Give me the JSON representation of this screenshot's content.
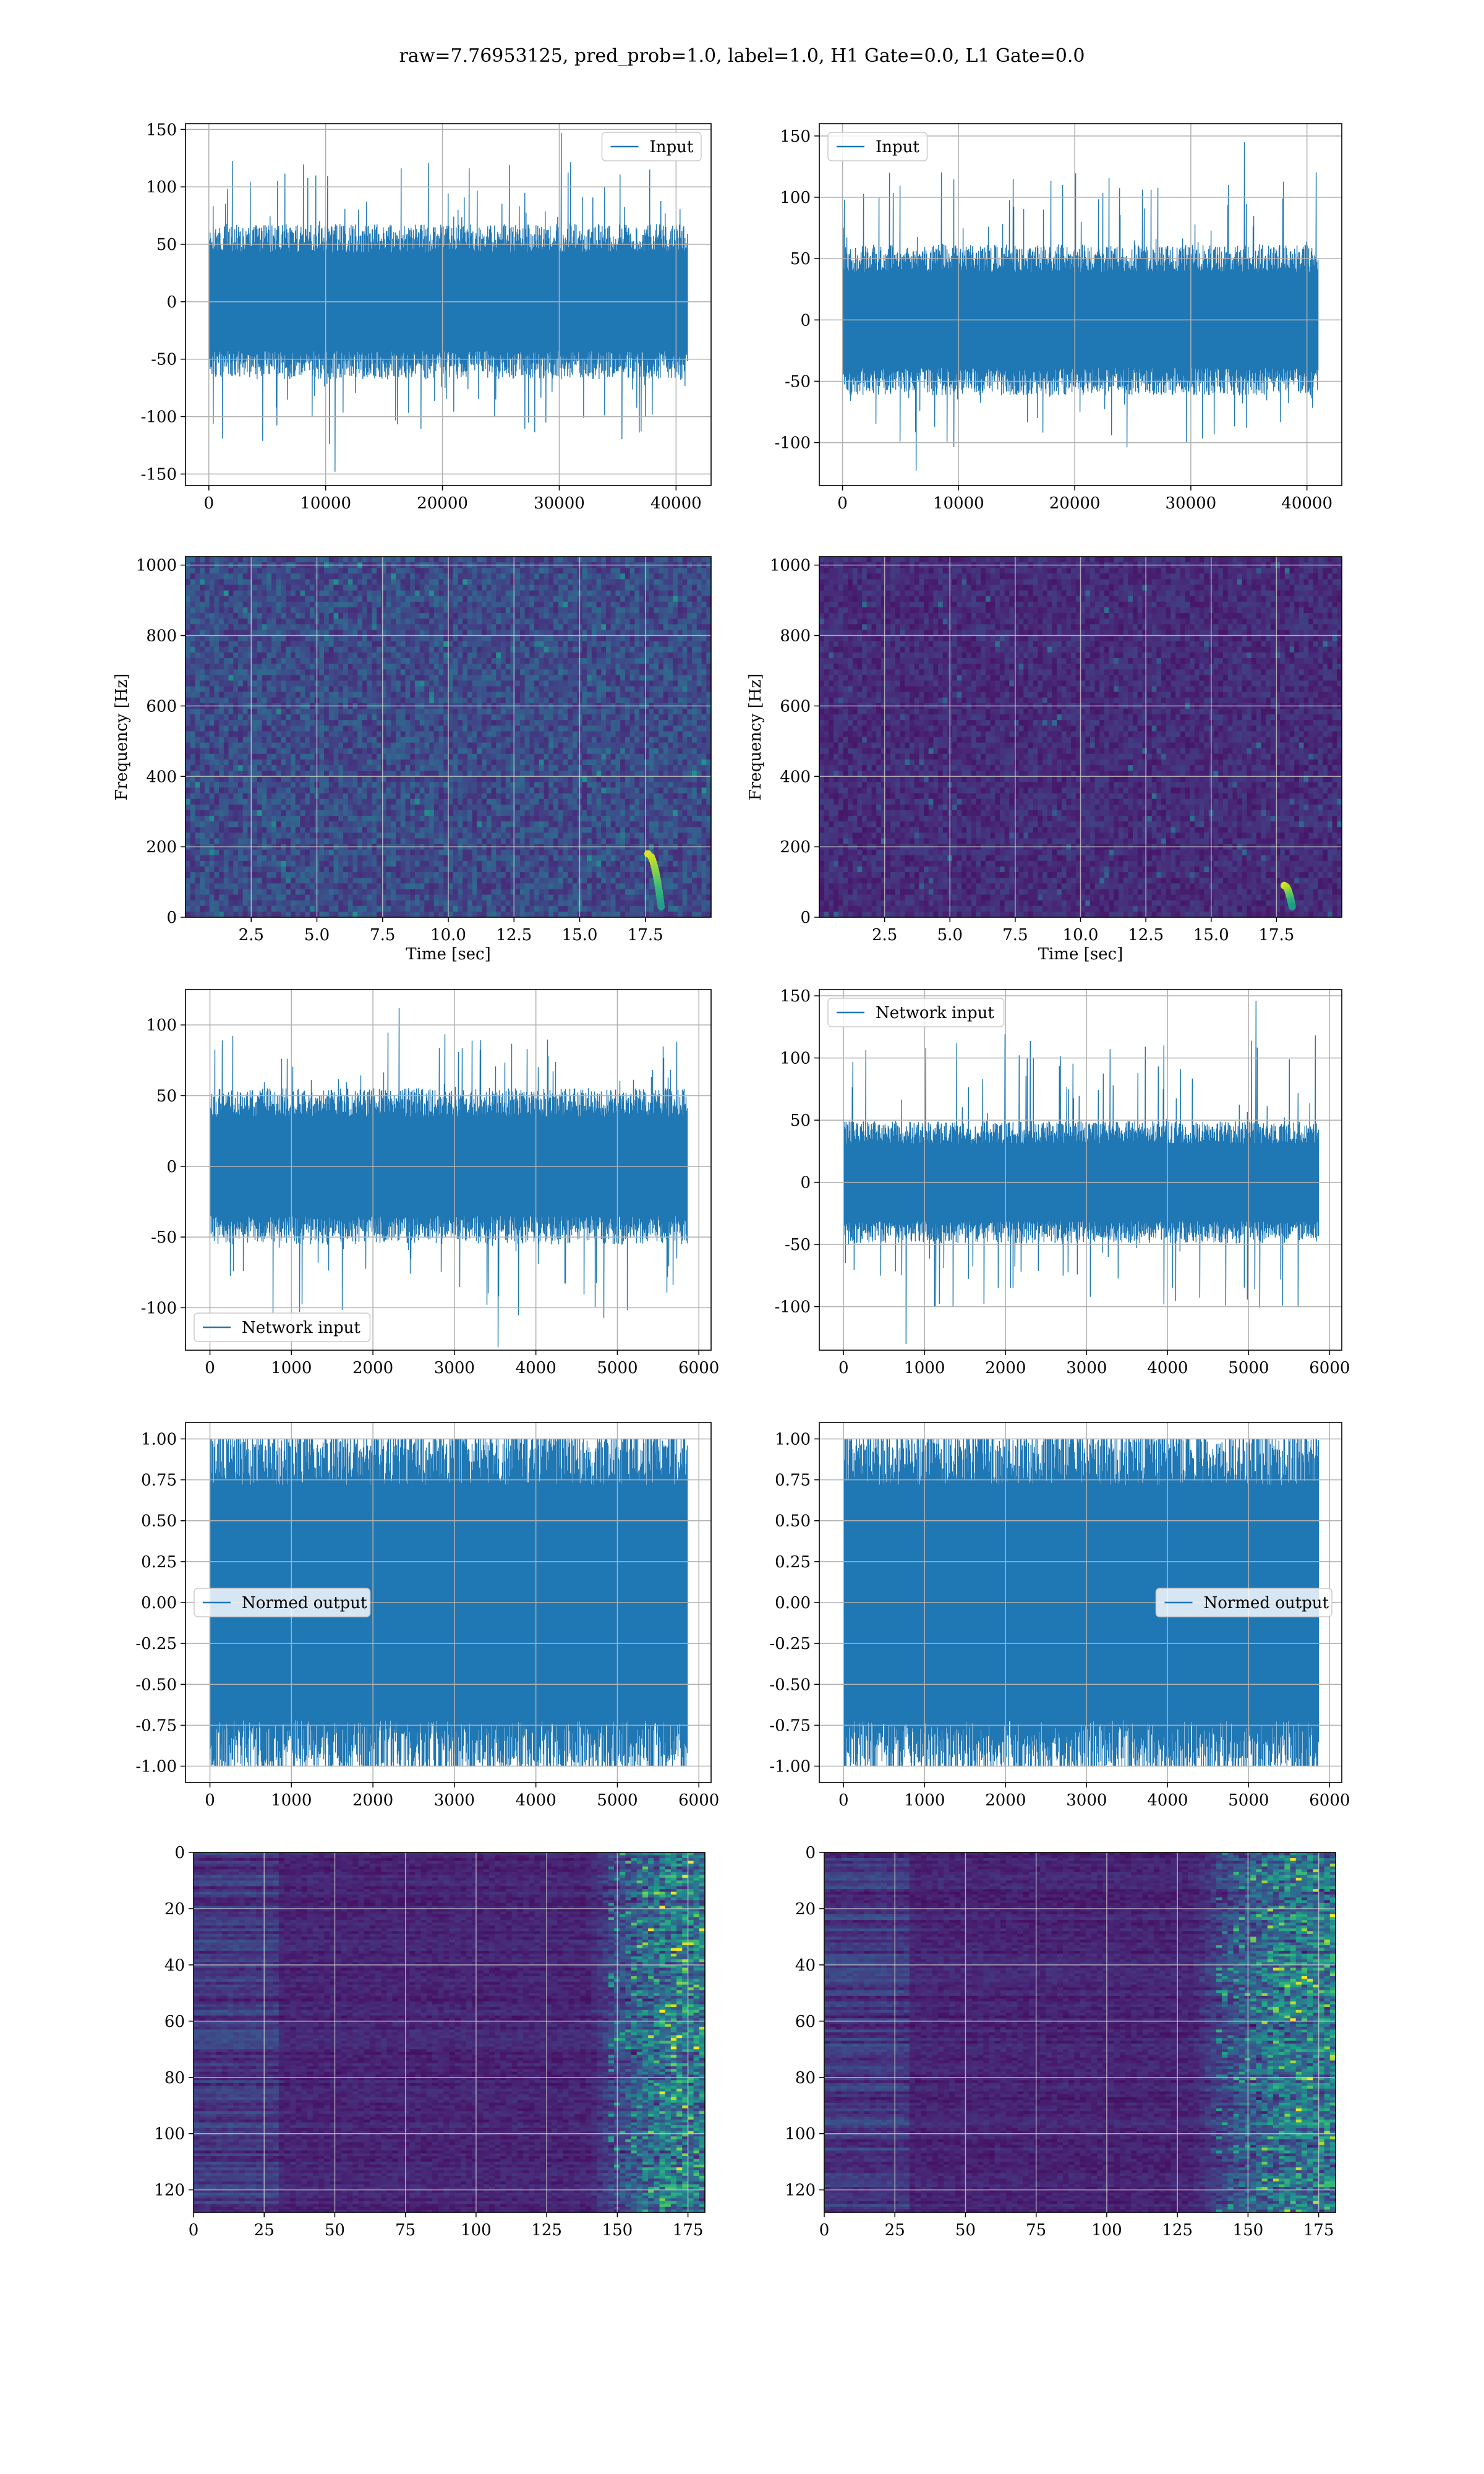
{
  "figure": {
    "title": "raw=7.76953125, pred_prob=1.0, label=1.0, H1 Gate=0.0, L1 Gate=0.0",
    "series_color": "#1f77b4"
  },
  "chart_data": [
    {
      "panel": "row1-left",
      "type": "line",
      "description": "Input time series, detector 1",
      "series": [
        {
          "name": "Input",
          "color": "#1f77b4"
        }
      ],
      "legend": "upper right",
      "x_range": [
        0,
        40960
      ],
      "xlim": [
        -2000,
        43000
      ],
      "ylim": [
        -160,
        155
      ],
      "xticks": [
        0,
        10000,
        20000,
        30000,
        40000
      ],
      "yticks": [
        -150,
        -100,
        -50,
        0,
        50,
        100,
        150
      ],
      "band_envelope": {
        "typical_abs": 55,
        "spike_max": 147,
        "spike_min": -148
      },
      "grid": true
    },
    {
      "panel": "row1-right",
      "type": "line",
      "description": "Input time series, detector 2",
      "series": [
        {
          "name": "Input",
          "color": "#1f77b4"
        }
      ],
      "legend": "upper left",
      "x_range": [
        0,
        40960
      ],
      "xlim": [
        -2000,
        43000
      ],
      "ylim": [
        -135,
        160
      ],
      "xticks": [
        0,
        10000,
        20000,
        30000,
        40000
      ],
      "yticks": [
        -100,
        -50,
        0,
        50,
        100,
        150
      ],
      "band_envelope": {
        "typical_abs": 50,
        "spike_max": 145,
        "spike_min": -123
      },
      "grid": true
    },
    {
      "panel": "row2-left",
      "type": "heatmap",
      "description": "Spectrogram, detector 1",
      "xlabel": "Time [sec]",
      "ylabel": "Frequency [Hz]",
      "xlim": [
        0,
        20
      ],
      "ylim": [
        0,
        1024
      ],
      "xticks": [
        2.5,
        5.0,
        7.5,
        10.0,
        12.5,
        15.0,
        17.5
      ],
      "yticks": [
        0,
        200,
        400,
        600,
        800,
        1000
      ],
      "colormap": "viridis",
      "chirp": {
        "t_start": 17.6,
        "t_end": 18.1,
        "f_low": 30,
        "f_high": 180
      },
      "grid": true
    },
    {
      "panel": "row2-right",
      "type": "heatmap",
      "description": "Spectrogram, detector 2",
      "xlabel": "Time [sec]",
      "ylabel": "Frequency [Hz]",
      "xlim": [
        0,
        20
      ],
      "ylim": [
        0,
        1024
      ],
      "xticks": [
        2.5,
        5.0,
        7.5,
        10.0,
        12.5,
        15.0,
        17.5
      ],
      "yticks": [
        0,
        200,
        400,
        600,
        800,
        1000
      ],
      "colormap": "viridis",
      "chirp": {
        "t_start": 17.8,
        "t_end": 18.1,
        "f_low": 30,
        "f_high": 90
      },
      "grid": true
    },
    {
      "panel": "row3-left",
      "type": "line",
      "description": "Network input, detector 1",
      "series": [
        {
          "name": "Network input",
          "color": "#1f77b4"
        }
      ],
      "legend": "lower left",
      "x_range": [
        0,
        5860
      ],
      "xlim": [
        -300,
        6150
      ],
      "ylim": [
        -130,
        125
      ],
      "xticks": [
        0,
        1000,
        2000,
        3000,
        4000,
        5000,
        6000
      ],
      "yticks": [
        -100,
        -50,
        0,
        50,
        100
      ],
      "band_envelope": {
        "typical_abs": 45,
        "spike_max": 112,
        "spike_min": -128
      },
      "grid": true
    },
    {
      "panel": "row3-right",
      "type": "line",
      "description": "Network input, detector 2",
      "series": [
        {
          "name": "Network input",
          "color": "#1f77b4"
        }
      ],
      "legend": "upper left",
      "x_range": [
        0,
        5860
      ],
      "xlim": [
        -300,
        6150
      ],
      "ylim": [
        -135,
        155
      ],
      "xticks": [
        0,
        1000,
        2000,
        3000,
        4000,
        5000,
        6000
      ],
      "yticks": [
        -100,
        -50,
        0,
        50,
        100,
        150
      ],
      "band_envelope": {
        "typical_abs": 40,
        "spike_max": 146,
        "spike_min": -130
      },
      "grid": true
    },
    {
      "panel": "row4-left",
      "type": "line",
      "description": "Normed output, detector 1",
      "series": [
        {
          "name": "Normed output",
          "color": "#1f77b4"
        }
      ],
      "legend": "center left",
      "x_range": [
        0,
        5860
      ],
      "xlim": [
        -300,
        6150
      ],
      "ylim": [
        -1.1,
        1.1
      ],
      "xticks": [
        0,
        1000,
        2000,
        3000,
        4000,
        5000,
        6000
      ],
      "yticks": [
        -1.0,
        -0.75,
        -0.5,
        -0.25,
        0.0,
        0.25,
        0.5,
        0.75,
        1.0
      ],
      "band_envelope": {
        "typical_abs": 0.92,
        "spike_max": 1.0,
        "spike_min": -1.0
      },
      "grid": true
    },
    {
      "panel": "row4-right",
      "type": "line",
      "description": "Normed output, detector 2",
      "series": [
        {
          "name": "Normed output",
          "color": "#1f77b4"
        }
      ],
      "legend": "center right",
      "x_range": [
        0,
        5860
      ],
      "xlim": [
        -300,
        6150
      ],
      "ylim": [
        -1.1,
        1.1
      ],
      "xticks": [
        0,
        1000,
        2000,
        3000,
        4000,
        5000,
        6000
      ],
      "yticks": [
        -1.0,
        -0.75,
        -0.5,
        -0.25,
        0.0,
        0.25,
        0.5,
        0.75,
        1.0
      ],
      "band_envelope": {
        "typical_abs": 0.92,
        "spike_max": 1.0,
        "spike_min": -1.0
      },
      "grid": true
    },
    {
      "panel": "row5-left",
      "type": "heatmap",
      "description": "Feature map, detector 1",
      "xlim": [
        0,
        181
      ],
      "ylim": [
        128,
        0
      ],
      "xticks": [
        0,
        25,
        50,
        75,
        100,
        125,
        150,
        175
      ],
      "yticks": [
        0,
        20,
        40,
        60,
        80,
        100,
        120
      ],
      "colormap": "viridis",
      "active_columns": [
        140,
        181
      ],
      "grid": true
    },
    {
      "panel": "row5-right",
      "type": "heatmap",
      "description": "Feature map, detector 2",
      "xlim": [
        0,
        181
      ],
      "ylim": [
        128,
        0
      ],
      "xticks": [
        0,
        25,
        50,
        75,
        100,
        125,
        150,
        175
      ],
      "yticks": [
        0,
        20,
        40,
        60,
        80,
        100,
        120
      ],
      "colormap": "viridis",
      "active_columns": [
        130,
        181
      ],
      "grid": true
    }
  ]
}
